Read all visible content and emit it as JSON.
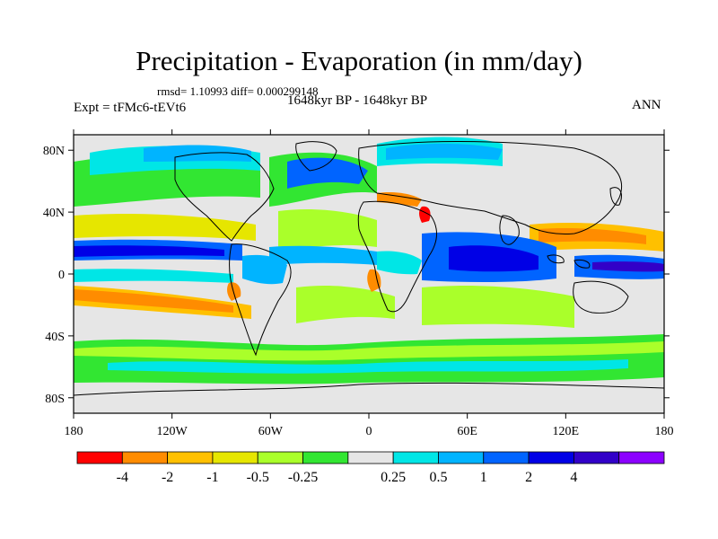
{
  "title": "Precipitation - Evaporation (in mm/day)",
  "stats": "rmsd= 1.10993 diff= 0.000299148",
  "experiment": "Expt = tFMc6-tEVt6",
  "period": "1648kyr BP - 1648kyr BP",
  "season": "ANN",
  "lat_axis": {
    "ticks": [
      {
        "value": 80,
        "label": "80N"
      },
      {
        "value": 40,
        "label": "40N"
      },
      {
        "value": 0,
        "label": "0"
      },
      {
        "value": -40,
        "label": "40S"
      },
      {
        "value": -80,
        "label": "80S"
      }
    ]
  },
  "lon_axis": {
    "ticks": [
      {
        "value": -180,
        "label": "180"
      },
      {
        "value": -120,
        "label": "120W"
      },
      {
        "value": -60,
        "label": "60W"
      },
      {
        "value": 0,
        "label": "0"
      },
      {
        "value": 60,
        "label": "60E"
      },
      {
        "value": 120,
        "label": "120E"
      },
      {
        "value": 180,
        "label": "180"
      }
    ]
  },
  "colorbar": {
    "colors": [
      "#ff0000",
      "#ff8c00",
      "#ffc000",
      "#e6e600",
      "#aaff2a",
      "#32e632",
      "#e6e6e6",
      "#00e6e6",
      "#00b4ff",
      "#0064ff",
      "#0000e6",
      "#3200c8",
      "#8c00ff"
    ],
    "labels": [
      "-4",
      "-2",
      "-1",
      "-0.5",
      "-0.25",
      "0.25",
      "0.5",
      "1",
      "2",
      "4"
    ]
  },
  "field_colors": {
    "zero": "#e6e6e6",
    "coast": "#000000",
    "frame": "#000000"
  }
}
